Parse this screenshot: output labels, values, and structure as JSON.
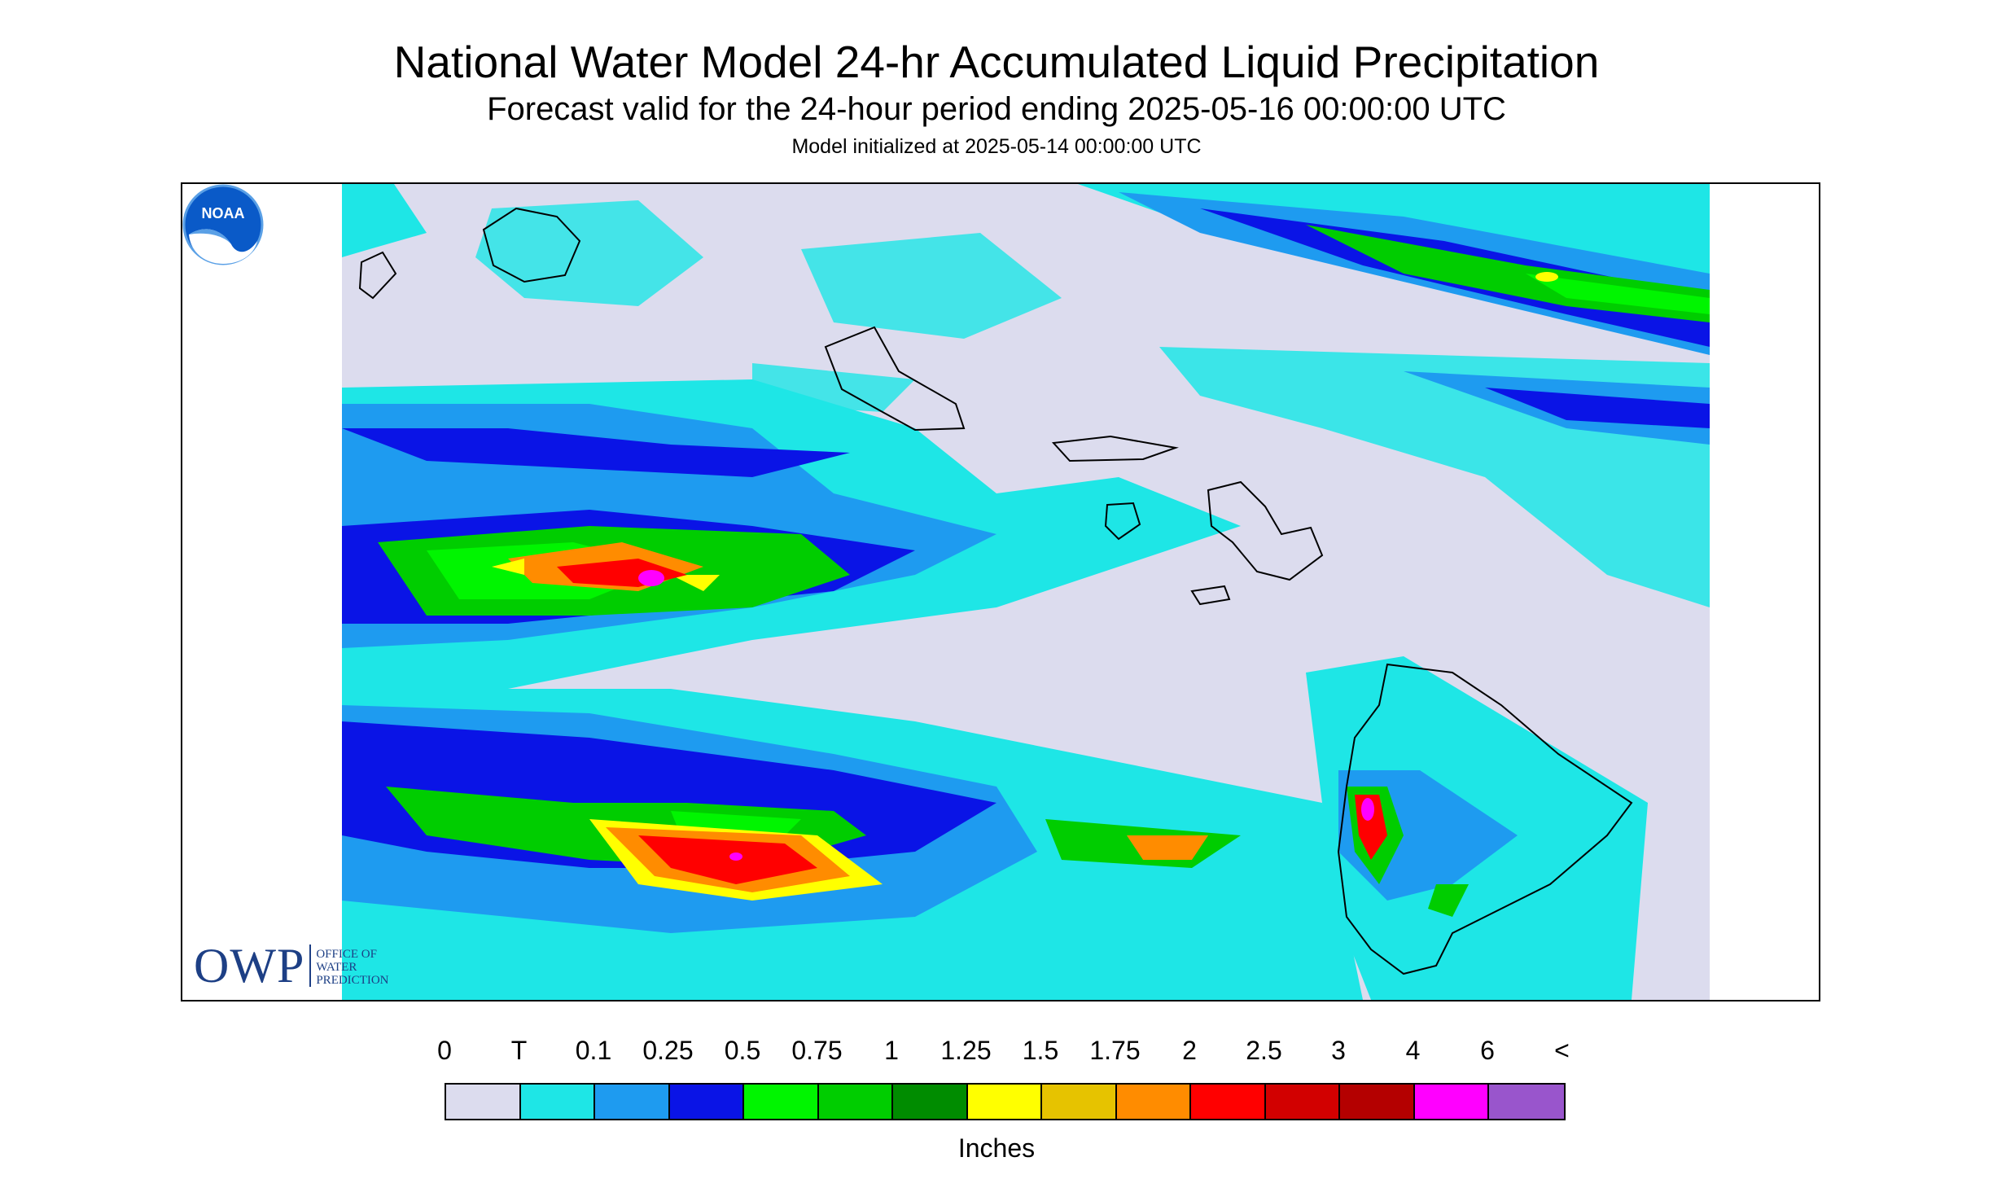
{
  "title": "National Water Model 24-hr Accumulated Liquid Precipitation",
  "subtitle": "Forecast valid for the 24-hour period ending 2025-05-16 00:00:00 UTC",
  "initialized": "Model initialized at 2025-05-14 00:00:00 UTC",
  "logos": {
    "owp_text": "OWP",
    "owp_subtext": [
      "OFFICE OF",
      "WATER",
      "PREDICTION"
    ],
    "noaa_text": "NOAA"
  },
  "legend": {
    "labels": [
      "0",
      "T",
      "0.1",
      "0.25",
      "0.5",
      "0.75",
      "1",
      "1.25",
      "1.5",
      "1.75",
      "2",
      "2.5",
      "3",
      "4",
      "6",
      "<"
    ],
    "colors": [
      "#dcdcee",
      "#1ee6e6",
      "#1e9bf0",
      "#0a14e6",
      "#00f500",
      "#00cd00",
      "#008c00",
      "#ffff00",
      "#e6c300",
      "#ff8c00",
      "#ff0000",
      "#d20000",
      "#b40000",
      "#ff00ff",
      "#9955cc"
    ],
    "units": "Inches"
  },
  "map": {
    "background": "#dcdcee",
    "outline_color": "#000000"
  }
}
